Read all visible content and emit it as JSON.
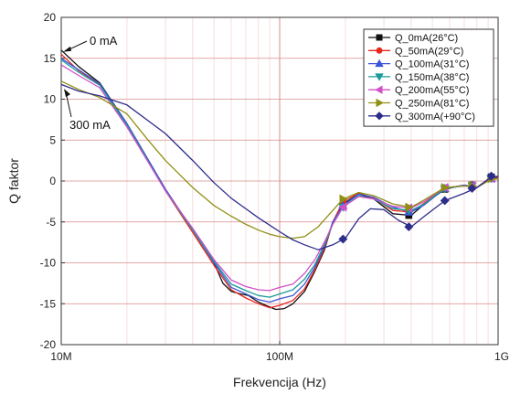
{
  "chart_data": {
    "type": "line",
    "xscale": "log",
    "xlim": [
      10000000,
      1000000000
    ],
    "ylim": [
      -20,
      20
    ],
    "xlabel": "Frekvencija (Hz)",
    "ylabel": "Q faktor",
    "grid": true,
    "legend_position": "top-right",
    "xticks": [
      {
        "v": 10000000,
        "label": "10M"
      },
      {
        "v": 100000000,
        "label": "100M"
      },
      {
        "v": 1000000000,
        "label": "1G"
      }
    ],
    "yticks": [
      {
        "v": 20,
        "label": "20"
      },
      {
        "v": 15,
        "label": "15"
      },
      {
        "v": 10,
        "label": "10"
      },
      {
        "v": 5,
        "label": "5"
      },
      {
        "v": 0,
        "label": "0"
      },
      {
        "v": -5,
        "label": "-5"
      },
      {
        "v": -10,
        "label": "-10"
      },
      {
        "v": -15,
        "label": "-15"
      },
      {
        "v": -20,
        "label": "-20"
      }
    ],
    "annotations": [
      {
        "text": "0 mA",
        "x": 10000000,
        "y": 16
      },
      {
        "text": "300 mA",
        "x": 10000000,
        "y": 11.5
      }
    ],
    "series": [
      {
        "name": "Q_0mA(26°C)",
        "color": "#111111",
        "marker": "square",
        "x": [
          10000000,
          12000000,
          15000000,
          20000000,
          30000000,
          40000000,
          50000000,
          55000000,
          60000000,
          66000000,
          72000000,
          80000000,
          88000000,
          96000000,
          105000000,
          115000000,
          130000000,
          145000000,
          160000000,
          175000000,
          195000000,
          230000000,
          270000000,
          330000000,
          400000000,
          460000000,
          570000000,
          700000000,
          800000000,
          900000000,
          1000000000
        ],
        "y": [
          16,
          14,
          12,
          7,
          -1,
          -6,
          -10,
          -12.5,
          -13.5,
          -13.8,
          -14,
          -14.8,
          -15.3,
          -15.7,
          -15.6,
          -15,
          -13.5,
          -11,
          -8.5,
          -5,
          -2.8,
          -1.6,
          -2.2,
          -4,
          -4.2,
          -2.8,
          -1,
          -0.5,
          -0.8,
          0.2,
          0.5
        ],
        "markers": [
          {
            "x": 195000000,
            "y": -2.8
          },
          {
            "x": 390000000,
            "y": -4.2
          },
          {
            "x": 570000000,
            "y": -1
          },
          {
            "x": 760000000,
            "y": -0.5
          },
          {
            "x": 930000000,
            "y": 0.5
          }
        ]
      },
      {
        "name": "Q_50mA(29°C)",
        "color": "#e8281e",
        "marker": "circle",
        "x": [
          10000000,
          12000000,
          15000000,
          20000000,
          30000000,
          40000000,
          50000000,
          60000000,
          70000000,
          80000000,
          90000000,
          100000000,
          115000000,
          130000000,
          145000000,
          160000000,
          175000000,
          195000000,
          230000000,
          270000000,
          330000000,
          400000000,
          460000000,
          570000000,
          700000000,
          800000000,
          900000000,
          1000000000
        ],
        "y": [
          15.5,
          13.5,
          11.8,
          6.8,
          -1.2,
          -6.3,
          -10.3,
          -13.3,
          -14.3,
          -15,
          -15.5,
          -15.2,
          -14.6,
          -13.2,
          -10.8,
          -8.3,
          -5,
          -2.5,
          -1.5,
          -2.1,
          -3.6,
          -3.8,
          -2.7,
          -0.9,
          -0.5,
          -0.8,
          0.2,
          0.4
        ],
        "markers": [
          {
            "x": 195000000,
            "y": -2.5
          },
          {
            "x": 390000000,
            "y": -3.8
          },
          {
            "x": 570000000,
            "y": -0.9
          },
          {
            "x": 760000000,
            "y": -0.5
          },
          {
            "x": 930000000,
            "y": 0.4
          }
        ]
      },
      {
        "name": "Q_100mA(31°C)",
        "color": "#3b55d6",
        "marker": "triangle-up",
        "x": [
          10000000,
          12000000,
          15000000,
          20000000,
          30000000,
          40000000,
          50000000,
          60000000,
          70000000,
          80000000,
          90000000,
          100000000,
          115000000,
          130000000,
          145000000,
          160000000,
          175000000,
          195000000,
          230000000,
          270000000,
          330000000,
          400000000,
          460000000,
          570000000,
          700000000,
          800000000,
          900000000,
          1000000000
        ],
        "y": [
          15,
          13.6,
          11.9,
          7,
          -1,
          -6,
          -10,
          -13,
          -13.8,
          -14.5,
          -14.8,
          -14.4,
          -14,
          -12.6,
          -10.5,
          -8,
          -5,
          -3,
          -1.6,
          -2,
          -3.2,
          -3.8,
          -2.9,
          -0.9,
          -0.5,
          -0.8,
          0.1,
          0.3
        ],
        "markers": [
          {
            "x": 195000000,
            "y": -3
          },
          {
            "x": 390000000,
            "y": -3.8
          },
          {
            "x": 570000000,
            "y": -0.9
          },
          {
            "x": 760000000,
            "y": -0.5
          },
          {
            "x": 930000000,
            "y": 0.3
          }
        ]
      },
      {
        "name": "Q_150mA(38°C)",
        "color": "#1a9a9a",
        "marker": "triangle-down",
        "x": [
          10000000,
          12000000,
          15000000,
          20000000,
          30000000,
          40000000,
          50000000,
          60000000,
          70000000,
          80000000,
          90000000,
          100000000,
          115000000,
          130000000,
          145000000,
          160000000,
          175000000,
          195000000,
          230000000,
          270000000,
          330000000,
          400000000,
          460000000,
          570000000,
          700000000,
          800000000,
          900000000,
          1000000000
        ],
        "y": [
          14.8,
          13.3,
          11.7,
          6.8,
          -1.2,
          -6,
          -9.8,
          -12.6,
          -13.4,
          -14,
          -14.2,
          -13.8,
          -13.3,
          -12,
          -10.2,
          -7.8,
          -5.3,
          -3.2,
          -1.8,
          -2.2,
          -3.4,
          -3.6,
          -2.8,
          -0.9,
          -0.6,
          -0.8,
          0.1,
          0.3
        ],
        "markers": [
          {
            "x": 195000000,
            "y": -3.2
          },
          {
            "x": 390000000,
            "y": -3.6
          },
          {
            "x": 570000000,
            "y": -0.9
          },
          {
            "x": 760000000,
            "y": -0.6
          },
          {
            "x": 930000000,
            "y": 0.3
          }
        ]
      },
      {
        "name": "Q_200mA(55°C)",
        "color": "#d050c8",
        "marker": "triangle-left",
        "x": [
          10000000,
          12000000,
          15000000,
          20000000,
          30000000,
          40000000,
          50000000,
          60000000,
          70000000,
          80000000,
          90000000,
          100000000,
          115000000,
          130000000,
          145000000,
          160000000,
          175000000,
          195000000,
          230000000,
          270000000,
          330000000,
          400000000,
          460000000,
          570000000,
          700000000,
          800000000,
          900000000,
          1000000000
        ],
        "y": [
          14.2,
          12.9,
          11.4,
          6.6,
          -1.2,
          -5.8,
          -9.6,
          -12.1,
          -12.9,
          -13.3,
          -13.4,
          -13,
          -12.6,
          -11.3,
          -9.6,
          -7.5,
          -5.3,
          -3.2,
          -1.9,
          -2.2,
          -3.1,
          -3.3,
          -2.5,
          -0.8,
          -0.6,
          -0.8,
          0.1,
          0.3
        ],
        "markers": [
          {
            "x": 195000000,
            "y": -3.2
          },
          {
            "x": 390000000,
            "y": -3.3
          },
          {
            "x": 570000000,
            "y": -0.8
          },
          {
            "x": 760000000,
            "y": -0.6
          },
          {
            "x": 930000000,
            "y": 0.3
          }
        ]
      },
      {
        "name": "Q_250mA(81°C)",
        "color": "#8f8f14",
        "marker": "triangle-right",
        "x": [
          10000000,
          12000000,
          15000000,
          20000000,
          25000000,
          30000000,
          40000000,
          50000000,
          60000000,
          70000000,
          80000000,
          90000000,
          100000000,
          115000000,
          130000000,
          150000000,
          175000000,
          195000000,
          230000000,
          270000000,
          330000000,
          400000000,
          460000000,
          570000000,
          700000000,
          800000000,
          900000000,
          1000000000
        ],
        "y": [
          12.2,
          11.2,
          10.2,
          8.2,
          5,
          2.5,
          -0.8,
          -3,
          -4.3,
          -5.3,
          -6,
          -6.5,
          -6.8,
          -7,
          -6.8,
          -5.6,
          -3.6,
          -2.2,
          -1.4,
          -1.8,
          -2.8,
          -3.2,
          -2.3,
          -0.8,
          -0.6,
          -0.8,
          0,
          0.3
        ],
        "markers": [
          {
            "x": 195000000,
            "y": -2.2
          },
          {
            "x": 390000000,
            "y": -3.2
          },
          {
            "x": 570000000,
            "y": -0.8
          },
          {
            "x": 760000000,
            "y": -0.6
          },
          {
            "x": 930000000,
            "y": 0.3
          }
        ]
      },
      {
        "name": "Q_300mA(+90°C)",
        "color": "#2c2c8c",
        "marker": "diamond",
        "x": [
          10000000,
          12000000,
          15000000,
          20000000,
          30000000,
          40000000,
          50000000,
          60000000,
          70000000,
          80000000,
          90000000,
          100000000,
          115000000,
          130000000,
          150000000,
          175000000,
          200000000,
          230000000,
          260000000,
          300000000,
          350000000,
          400000000,
          460000000,
          570000000,
          700000000,
          800000000,
          900000000,
          1000000000
        ],
        "y": [
          11.8,
          11,
          10.4,
          9.3,
          5.8,
          2.5,
          -0.2,
          -2.1,
          -3.4,
          -4.5,
          -5.4,
          -6.2,
          -7.2,
          -7.8,
          -8.4,
          -7.8,
          -7,
          -4.6,
          -3.4,
          -3.5,
          -4.8,
          -5.6,
          -4.3,
          -2.4,
          -1.5,
          -0.8,
          0.2,
          0.6
        ],
        "markers": [
          {
            "x": 195000000,
            "y": -7.1
          },
          {
            "x": 390000000,
            "y": -5.6
          },
          {
            "x": 570000000,
            "y": -2.4
          },
          {
            "x": 760000000,
            "y": -0.9
          },
          {
            "x": 930000000,
            "y": 0.6
          }
        ]
      }
    ]
  }
}
